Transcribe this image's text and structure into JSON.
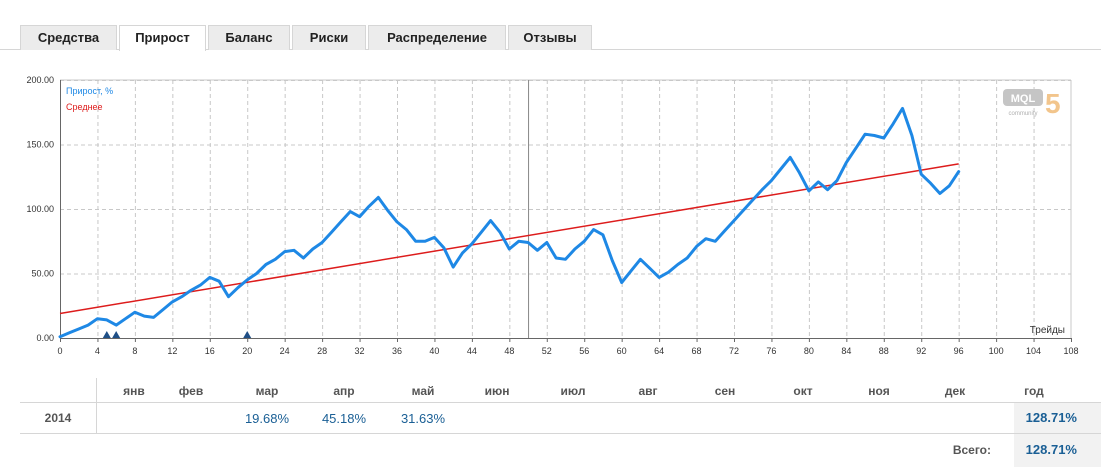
{
  "tabs": [
    {
      "label": "Средства",
      "active": false
    },
    {
      "label": "Прирост",
      "active": true
    },
    {
      "label": "Баланс",
      "active": false
    },
    {
      "label": "Риски",
      "active": false
    },
    {
      "label": "Распределение",
      "active": false
    },
    {
      "label": "Отзывы",
      "active": false
    }
  ],
  "logo": {
    "text": "MQL",
    "digit": "5",
    "sub": "community"
  },
  "colors": {
    "series": "#1e88e5",
    "trend": "#dd1c1c",
    "grid": "#c8c8c8",
    "value": "#1a5f95"
  },
  "chart_data": {
    "type": "line",
    "xlabel": "Трейды",
    "ylabel": "",
    "xlim": [
      0,
      108
    ],
    "ylim": [
      0,
      200
    ],
    "xticks": [
      0,
      4,
      8,
      12,
      16,
      20,
      24,
      28,
      32,
      36,
      40,
      44,
      48,
      52,
      56,
      60,
      64,
      68,
      72,
      76,
      80,
      84,
      88,
      92,
      96,
      100,
      104,
      108
    ],
    "yticks": [
      0,
      50,
      100,
      150,
      200
    ],
    "ytick_labels": [
      "0.00",
      "50.00",
      "100.00",
      "150.00",
      "200.00"
    ],
    "grid": true,
    "legend_position": "top-left",
    "series": [
      {
        "name": "Прирост, %",
        "x": [
          0,
          1,
          2,
          3,
          4,
          5,
          6,
          7,
          8,
          9,
          10,
          11,
          12,
          13,
          14,
          15,
          16,
          17,
          18,
          19,
          20,
          21,
          22,
          23,
          24,
          25,
          26,
          27,
          28,
          29,
          30,
          31,
          32,
          33,
          34,
          35,
          36,
          37,
          38,
          39,
          40,
          41,
          42,
          43,
          44,
          45,
          46,
          47,
          48,
          49,
          50,
          51,
          52,
          53,
          54,
          55,
          56,
          57,
          58,
          59,
          60,
          61,
          62,
          63,
          64,
          65,
          66,
          67,
          68,
          69,
          70,
          71,
          72,
          73,
          74,
          75,
          76,
          77,
          78,
          79,
          80,
          81,
          82,
          83,
          84,
          85,
          86,
          87,
          88,
          89,
          90,
          91,
          92,
          93,
          94,
          95,
          96
        ],
        "values": [
          1,
          4,
          7,
          10,
          15,
          14,
          10,
          15,
          20,
          17,
          16,
          22,
          28,
          32,
          37,
          41,
          47,
          44,
          32,
          39,
          45,
          50,
          57,
          61,
          67,
          68,
          62,
          69,
          74,
          82,
          90,
          98,
          94,
          102,
          109,
          99,
          90,
          84,
          75,
          75,
          78,
          70,
          55,
          66,
          73,
          82,
          91,
          82,
          69,
          75,
          74,
          68,
          74,
          62,
          61,
          69,
          75,
          84,
          80,
          60,
          43,
          52,
          61,
          54,
          47,
          51,
          57,
          62,
          71,
          77,
          75,
          83,
          91,
          99,
          107,
          115,
          122,
          131,
          140,
          128,
          114,
          121,
          115,
          122,
          136,
          147,
          158,
          157,
          155,
          166,
          178,
          157,
          127,
          120,
          112,
          118,
          129
        ]
      },
      {
        "name": "Среднее",
        "x": [
          0,
          96
        ],
        "values": [
          19,
          135
        ]
      }
    ],
    "markers": [
      {
        "x": 5,
        "y": 0
      },
      {
        "x": 6,
        "y": 0
      },
      {
        "x": 20,
        "y": 0
      }
    ],
    "vertical_line_x": 50
  },
  "monthly": {
    "columns": [
      "янв",
      "фев",
      "мар",
      "апр",
      "май",
      "июн",
      "июл",
      "авг",
      "сен",
      "окт",
      "ноя",
      "дек",
      "год"
    ],
    "rows": [
      {
        "year": "2014",
        "values": [
          "",
          "",
          "19.68%",
          "45.18%",
          "31.63%",
          "",
          "",
          "",
          "",
          "",
          "",
          "",
          "128.71%"
        ]
      }
    ],
    "total_label": "Всего:",
    "total_value": "128.71%"
  }
}
